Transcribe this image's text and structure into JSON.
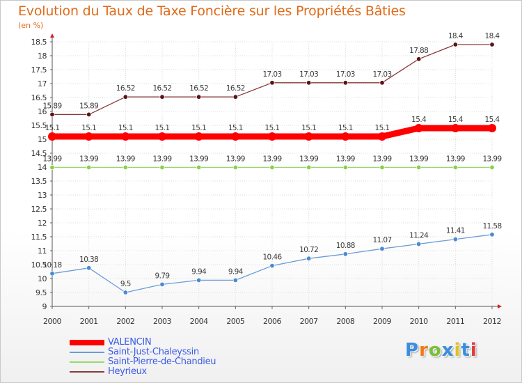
{
  "chart_data": {
    "type": "line",
    "title": "Evolution du Taux de Taxe Foncière sur les Propriétés Bâties",
    "ylabel": "(en %)",
    "x": [
      "2000",
      "2001",
      "2002",
      "2003",
      "2004",
      "2005",
      "2006",
      "2007",
      "2008",
      "2009",
      "2010",
      "2011",
      "2012"
    ],
    "y_ticks": [
      "9",
      "9.5",
      "10",
      "10.5",
      "11",
      "11.5",
      "12",
      "12.5",
      "13",
      "13.5",
      "14",
      "14.5",
      "15",
      "15.5",
      "16",
      "16.5",
      "17",
      "17.5",
      "18",
      "18.5"
    ],
    "ylim": [
      9,
      18.5
    ],
    "legend_position": "bottom-left",
    "series": [
      {
        "name": "VALENCIN",
        "color": "#ff0000",
        "values": [
          15.1,
          15.1,
          15.1,
          15.1,
          15.1,
          15.1,
          15.1,
          15.1,
          15.1,
          15.1,
          15.4,
          15.4,
          15.4
        ],
        "labels": [
          "15.1",
          "15.1",
          "15.1",
          "15.1",
          "15.1",
          "15.1",
          "15.1",
          "15.1",
          "15.1",
          "15.1",
          "15.4",
          "15.4",
          "15.4"
        ]
      },
      {
        "name": "Saint-Just-Chaleyssin",
        "color": "#6a9cd8",
        "marker_color": "#4a8ad0",
        "values": [
          10.18,
          10.38,
          9.5,
          9.79,
          9.94,
          9.94,
          10.46,
          10.72,
          10.88,
          11.07,
          11.24,
          11.41,
          11.58
        ],
        "labels": [
          "10.18",
          "10.38",
          "9.5",
          "9.79",
          "9.94",
          "9.94",
          "10.46",
          "10.72",
          "10.88",
          "11.07",
          "11.24",
          "11.41",
          "11.58"
        ]
      },
      {
        "name": "Saint-Pierre-de-Chandieu",
        "color": "#9ad86a",
        "marker_color": "#8ad04a",
        "values": [
          13.99,
          13.99,
          13.99,
          13.99,
          13.99,
          13.99,
          13.99,
          13.99,
          13.99,
          13.99,
          13.99,
          13.99,
          13.99
        ],
        "labels": [
          "13.99",
          "13.99",
          "13.99",
          "13.99",
          "13.99",
          "13.99",
          "13.99",
          "13.99",
          "13.99",
          "13.99",
          "13.99",
          "13.99",
          "13.99"
        ]
      },
      {
        "name": "Heyrieux",
        "color": "#8a3a3a",
        "marker_color": "#5a1414",
        "values": [
          15.89,
          15.89,
          16.52,
          16.52,
          16.52,
          16.52,
          17.03,
          17.03,
          17.03,
          17.03,
          17.88,
          18.4,
          18.4
        ],
        "labels": [
          "15.89",
          "15.89",
          "16.52",
          "16.52",
          "16.52",
          "16.52",
          "17.03",
          "17.03",
          "17.03",
          "17.03",
          "17.88",
          "18.4",
          "18.4"
        ]
      }
    ]
  },
  "logo": {
    "letters": [
      "P",
      "r",
      "o",
      "x",
      "i",
      "t",
      "i"
    ],
    "colors": [
      "#3a8ee0",
      "#f07a18",
      "#7ac038",
      "#3a8ee0",
      "#e0c020",
      "#3a8ee0",
      "#e03a3a"
    ]
  }
}
